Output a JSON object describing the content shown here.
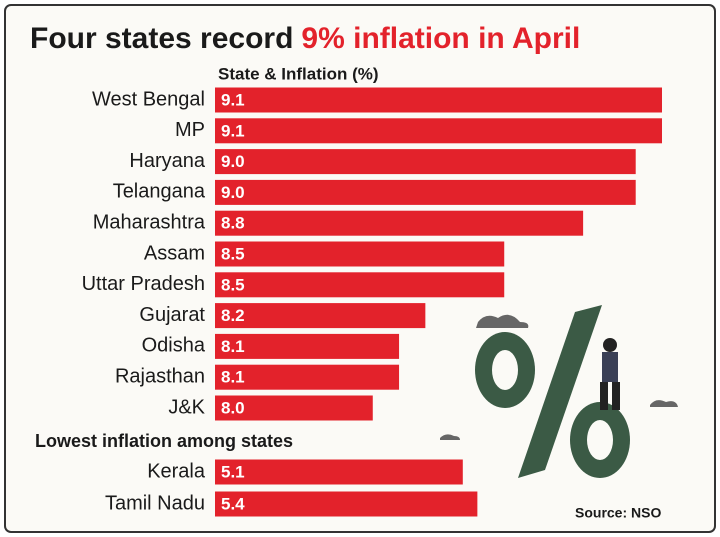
{
  "chart_data": [
    {
      "type": "bar",
      "color": "#e3222b",
      "title": [
        "Four states record",
        "9% inflation in April"
      ],
      "subtitle": "State & Inflation (%)",
      "categories": [
        "West Bengal",
        "MP",
        "Haryana",
        "Telangana",
        "Maharashtra",
        "Assam",
        "Uttar Pradesh",
        "Gujarat",
        "Odisha",
        "Rajasthan",
        "J&K"
      ],
      "values": [
        9.1,
        9.1,
        9.0,
        9.0,
        8.8,
        8.5,
        8.5,
        8.2,
        8.1,
        8.1,
        8.0
      ],
      "value_labels": [
        "9.1",
        "9.1",
        "9.0",
        "9.0",
        "8.8",
        "8.5",
        "8.5",
        "8.2",
        "8.1",
        "8.1",
        "8.0"
      ],
      "xlim": [
        7.4,
        9.1
      ]
    },
    {
      "type": "bar",
      "color": "#e3222b",
      "title": "Lowest inflation among states",
      "categories": [
        "Kerala",
        "Tamil Nadu"
      ],
      "values": [
        5.1,
        5.4
      ],
      "value_labels": [
        "5.1",
        "5.4"
      ],
      "xlim": [
        0,
        9.2
      ],
      "source": "Source: NSO"
    }
  ]
}
